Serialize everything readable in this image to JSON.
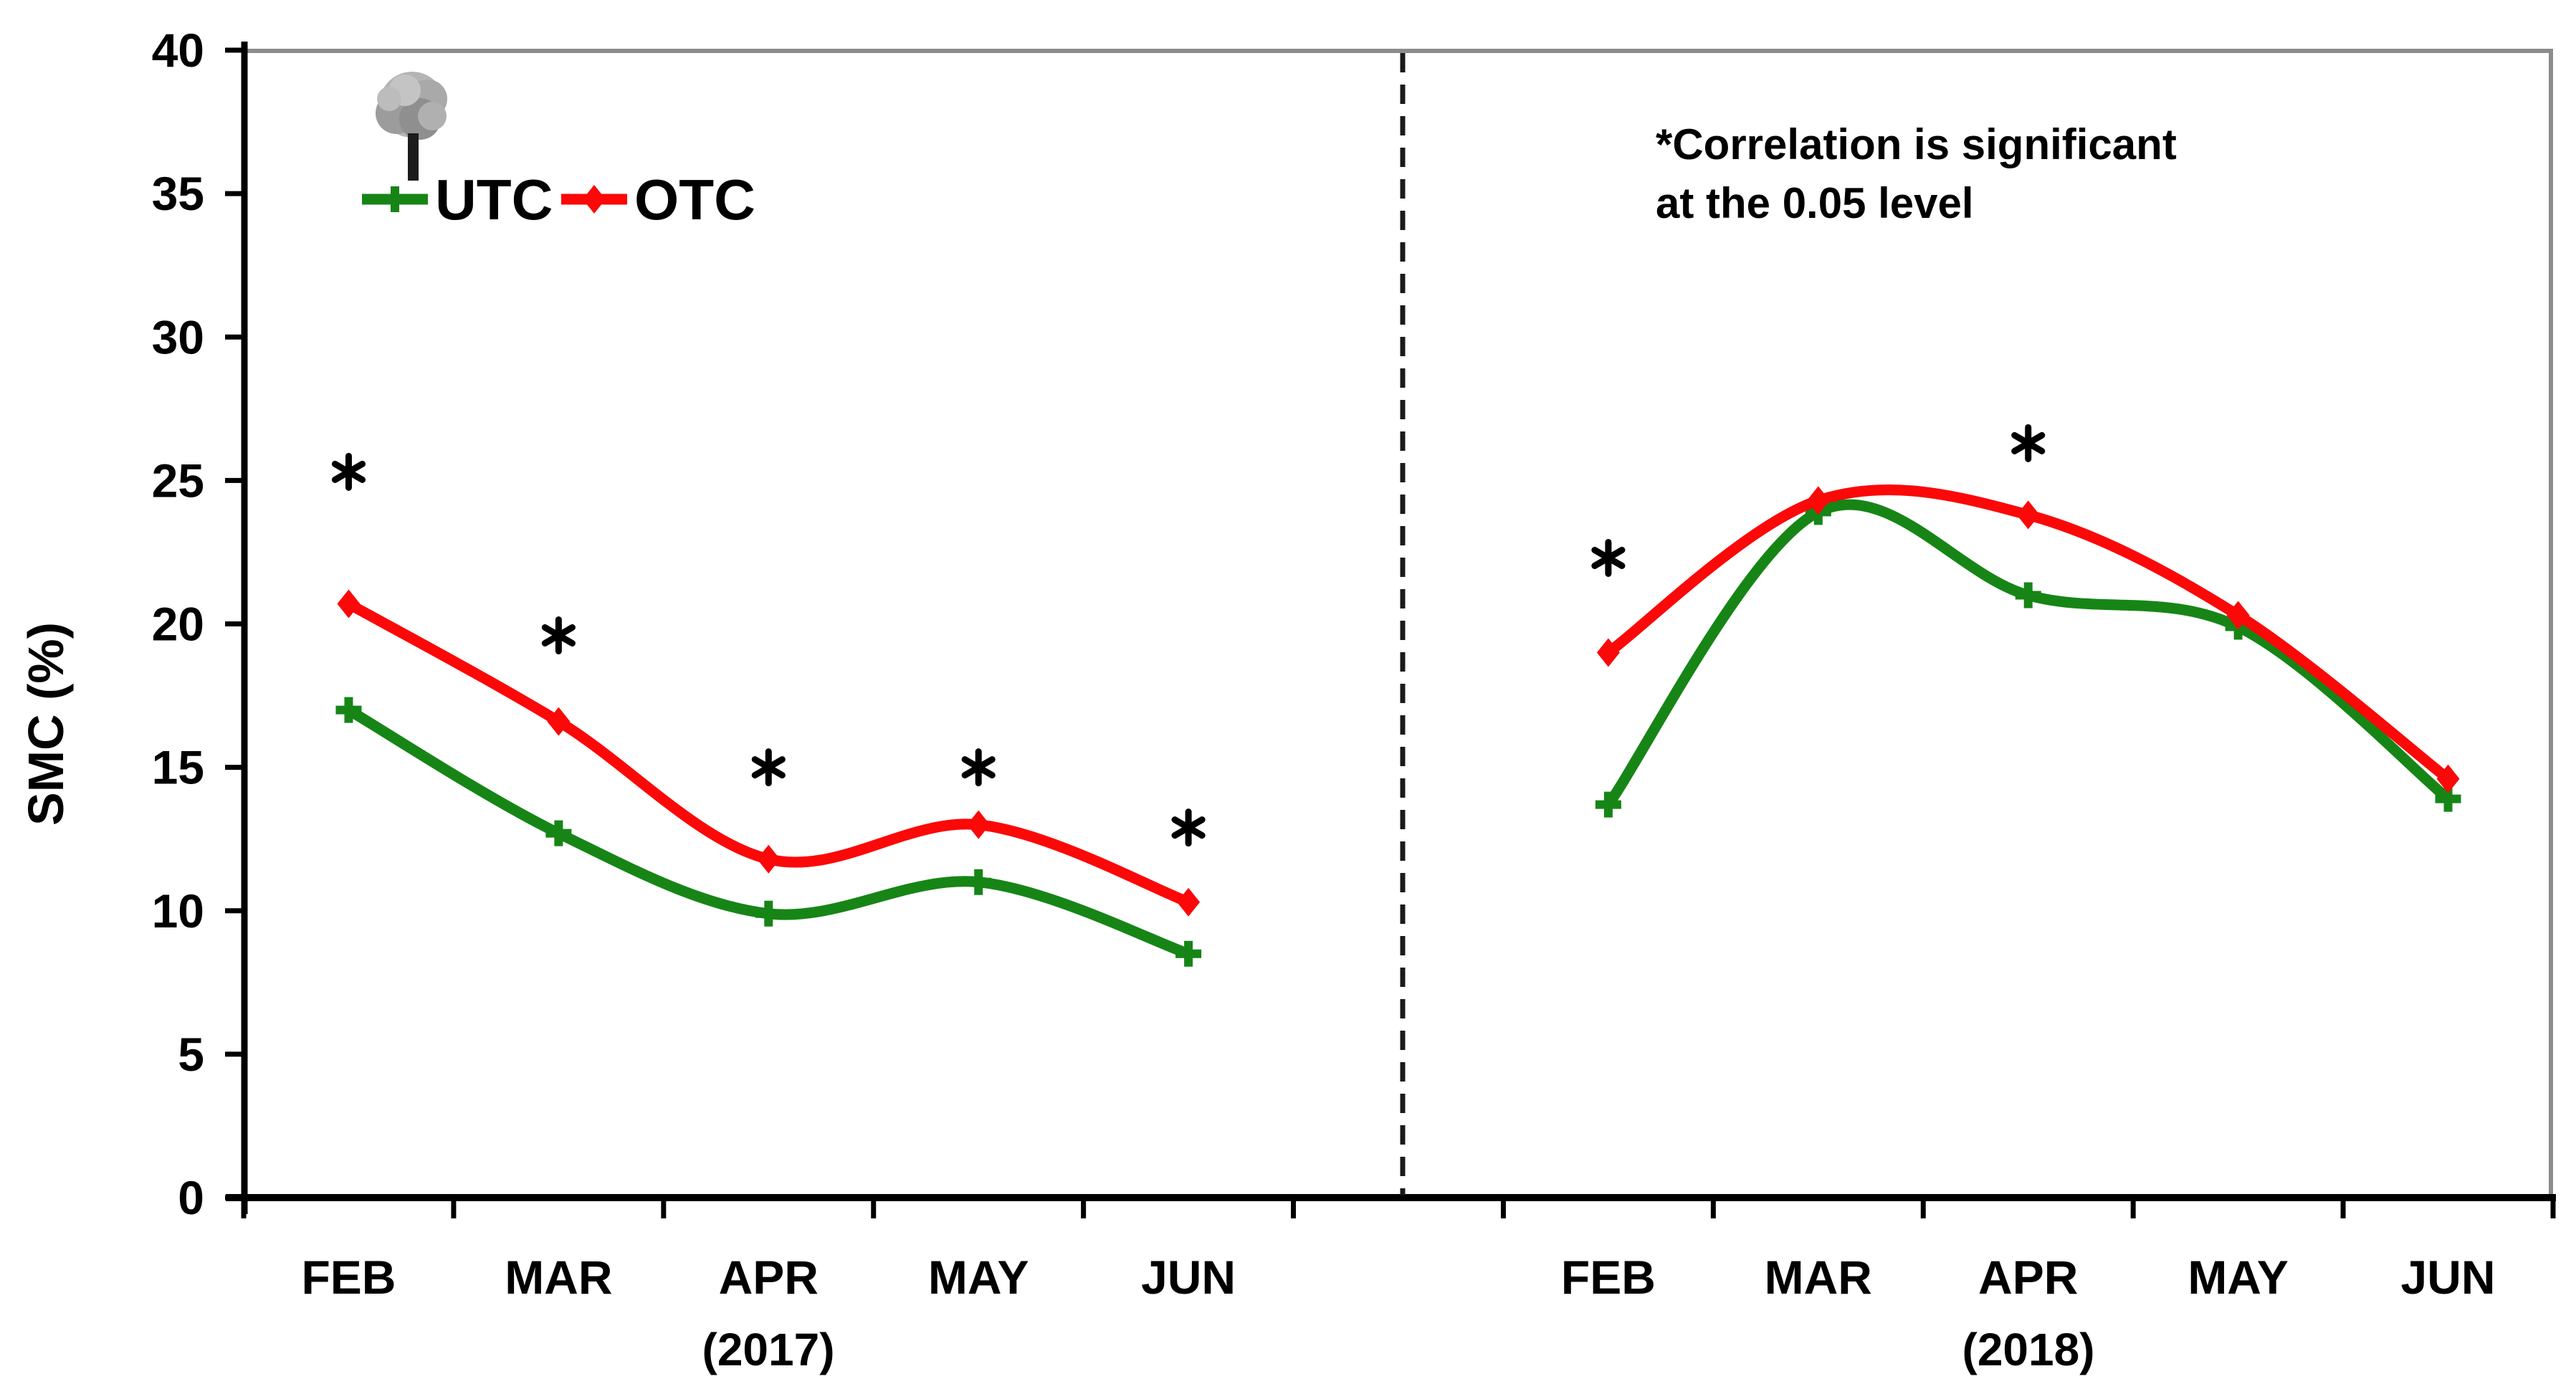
{
  "chart_data": {
    "type": "line",
    "title": "",
    "ylabel": "SMC (%)",
    "xlabel": "",
    "ylim": [
      0,
      40
    ],
    "yticks": [
      0,
      5,
      10,
      15,
      20,
      25,
      30,
      35,
      40
    ],
    "grid": false,
    "categories": [
      "FEB",
      "MAR",
      "APR",
      "MAY",
      "JUN"
    ],
    "legend": {
      "position": "top-left",
      "items": [
        {
          "label": "UTC",
          "color": "#168516",
          "marker": "plus"
        },
        {
          "label": "OTC",
          "color": "#fb0808",
          "marker": "diamond"
        }
      ]
    },
    "annotation": {
      "line1": "*Correlation is significant",
      "line2": "at the 0.05 level"
    },
    "separator": {
      "style": "dashed",
      "between": "JUN 2017 and FEB 2018"
    },
    "panels": [
      {
        "year": "(2017)",
        "series": [
          {
            "name": "UTC",
            "color": "#168516",
            "marker": "plus",
            "values": [
              17.0,
              12.7,
              9.9,
              11.0,
              8.5
            ]
          },
          {
            "name": "OTC",
            "color": "#fb0808",
            "marker": "diamond",
            "values": [
              20.7,
              16.6,
              11.8,
              13.0,
              10.3
            ]
          }
        ],
        "significance_asterisks": [
          {
            "month": "FEB",
            "value": 25.3
          },
          {
            "month": "MAR",
            "value": 19.6
          },
          {
            "month": "APR",
            "value": 15.0
          },
          {
            "month": "MAY",
            "value": 15.0
          },
          {
            "month": "JUN",
            "value": 12.9
          }
        ]
      },
      {
        "year": "(2018)",
        "series": [
          {
            "name": "UTC",
            "color": "#168516",
            "marker": "plus",
            "values": [
              13.7,
              23.9,
              21.0,
              19.9,
              13.9
            ]
          },
          {
            "name": "OTC",
            "color": "#fb0808",
            "marker": "diamond",
            "values": [
              19.0,
              24.3,
              23.8,
              20.3,
              14.6
            ]
          }
        ],
        "significance_asterisks": [
          {
            "month": "FEB",
            "value": 22.3
          },
          {
            "month": "APR",
            "value": 26.3
          }
        ]
      }
    ],
    "axis_colors": {
      "axis": "#000000",
      "border": "#8c8c8c",
      "separator": "#1a1a1a"
    }
  }
}
